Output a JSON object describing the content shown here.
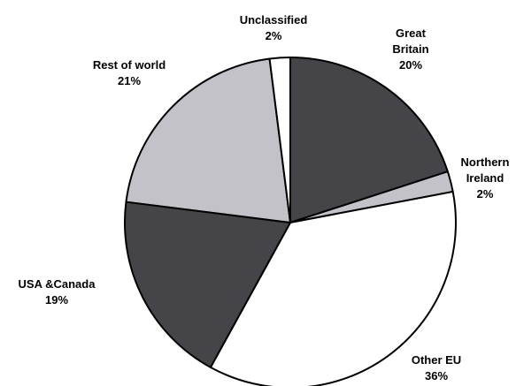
{
  "chart_data": {
    "type": "pie",
    "title": "",
    "slices": [
      {
        "label": [
          "Great",
          "Britain"
        ],
        "value": 20,
        "display": "20%",
        "color": "#454549"
      },
      {
        "label": [
          "Northern",
          "Ireland"
        ],
        "value": 2,
        "display": "2%",
        "color": "#c2c2c8"
      },
      {
        "label": [
          "Other EU"
        ],
        "value": 36,
        "display": "36%",
        "color": "#ffffff"
      },
      {
        "label": [
          "USA &Canada"
        ],
        "value": 19,
        "display": "19%",
        "color": "#454549"
      },
      {
        "label": [
          "Rest of world"
        ],
        "value": 21,
        "display": "21%",
        "color": "#c2c2c8"
      },
      {
        "label": [
          "Unclassified"
        ],
        "value": 2,
        "display": "2%",
        "color": "#ffffff"
      }
    ],
    "start": "12 o'clock",
    "direction": "clockwise",
    "legend": "none",
    "outline_color": "#000000"
  }
}
